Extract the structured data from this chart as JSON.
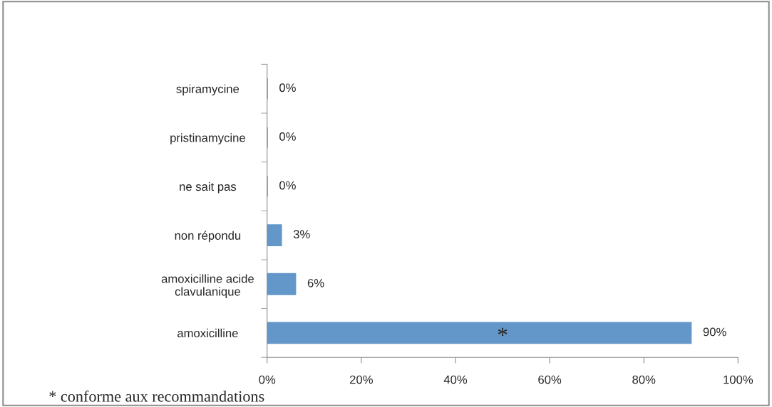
{
  "chart_data": {
    "type": "bar",
    "orientation": "horizontal",
    "categories": [
      "spiramycine",
      "pristinamycine",
      "ne sait pas",
      "non répondu",
      "amoxicilline acide\nclavulanique",
      "amoxicilline"
    ],
    "series": [
      {
        "color": "#6497c9",
        "values": [
          0,
          0,
          0,
          3,
          6,
          90
        ],
        "value_labels": [
          "0%",
          "0%",
          "0%",
          "3%",
          "6%",
          "90%"
        ]
      }
    ],
    "xlim": [
      0,
      100
    ],
    "xticks": [
      {
        "value": 0,
        "label": "0%"
      },
      {
        "value": 20,
        "label": "20%"
      },
      {
        "value": 40,
        "label": "40%"
      },
      {
        "value": 60,
        "label": "60%"
      },
      {
        "value": 80,
        "label": "80%"
      },
      {
        "value": 100,
        "label": "100%"
      }
    ],
    "annotations": [
      "*",
      "* conforme aux recommandations"
    ],
    "grid": false,
    "legend": false
  }
}
